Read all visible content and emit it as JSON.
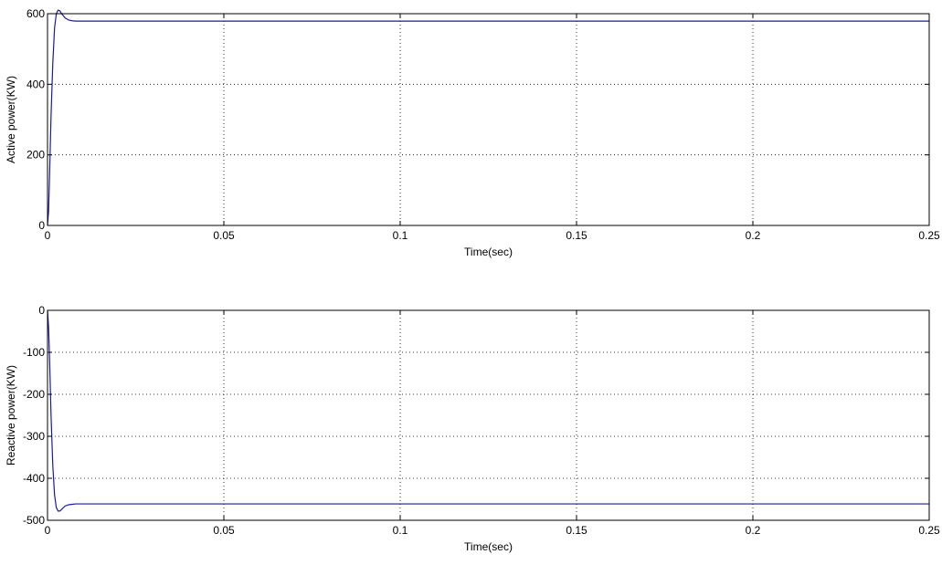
{
  "chart_data": [
    {
      "type": "line",
      "title": "",
      "xlabel": "Time(sec)",
      "ylabel": "Active power(KW)",
      "xlim": [
        0,
        0.25
      ],
      "ylim": [
        0,
        600
      ],
      "xticks": [
        0,
        0.05,
        0.1,
        0.15,
        0.2,
        0.25
      ],
      "xtick_labels": [
        "0",
        "0.05",
        "0.1",
        "0.15",
        "0.2",
        "0.25"
      ],
      "yticks": [
        0,
        200,
        400,
        600
      ],
      "ytick_labels": [
        "0",
        "200",
        "400",
        "600"
      ],
      "grid": true,
      "series_color": "#1a1aa0",
      "series": [
        {
          "x": [
            0,
            0.0003,
            0.0006,
            0.001,
            0.0015,
            0.002,
            0.0025,
            0.003,
            0.0035,
            0.004,
            0.005,
            0.006,
            0.007,
            0.008,
            0.01,
            0.05,
            0.1,
            0.15,
            0.2,
            0.25
          ],
          "y": [
            0,
            40,
            150,
            310,
            460,
            560,
            600,
            610,
            608,
            600,
            588,
            582,
            580,
            579,
            579,
            579,
            579,
            579,
            579,
            579
          ]
        }
      ]
    },
    {
      "type": "line",
      "title": "",
      "xlabel": "Time(sec)",
      "ylabel": "Reactive power(KW)",
      "xlim": [
        0,
        0.25
      ],
      "ylim": [
        -500,
        0
      ],
      "xticks": [
        0,
        0.05,
        0.1,
        0.15,
        0.2,
        0.25
      ],
      "xtick_labels": [
        "0",
        "0.05",
        "0.1",
        "0.15",
        "0.2",
        "0.25"
      ],
      "yticks": [
        -500,
        -400,
        -300,
        -200,
        -100,
        0
      ],
      "ytick_labels": [
        "-500",
        "-400",
        "-300",
        "-200",
        "-100",
        "0"
      ],
      "grid": true,
      "series_color": "#1a1aa0",
      "series": [
        {
          "x": [
            0,
            0.0003,
            0.0006,
            0.001,
            0.0015,
            0.002,
            0.0025,
            0.003,
            0.0035,
            0.004,
            0.005,
            0.006,
            0.007,
            0.008,
            0.01,
            0.05,
            0.1,
            0.15,
            0.2,
            0.25
          ],
          "y": [
            0,
            -40,
            -120,
            -250,
            -370,
            -440,
            -470,
            -478,
            -478,
            -474,
            -466,
            -463,
            -462,
            -461,
            -461,
            -461,
            -461,
            -461,
            -461,
            -461
          ]
        }
      ]
    }
  ]
}
